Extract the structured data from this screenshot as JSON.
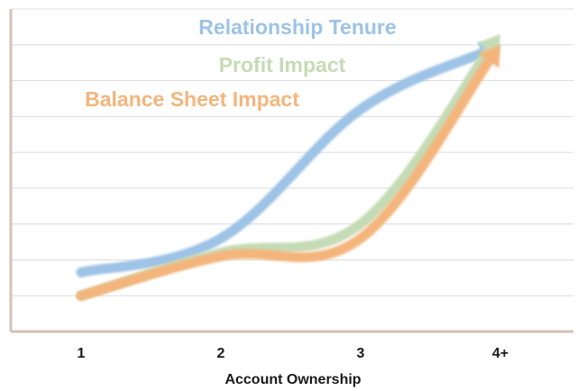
{
  "chart_data": {
    "type": "line",
    "title": "",
    "xlabel": "Account Ownership",
    "ylabel": "",
    "categories": [
      "1",
      "2",
      "3",
      "4+"
    ],
    "ylim": [
      0,
      9
    ],
    "grid": true,
    "legend_placement": "top-center",
    "series": [
      {
        "name": "Relationship Tenure",
        "color": "#9dc3e6",
        "values": [
          1.65,
          2.6,
          6.2,
          8.0
        ]
      },
      {
        "name": "Profit Impact",
        "color": "#c5dbb5",
        "values": [
          1.0,
          2.2,
          3.0,
          8.3
        ]
      },
      {
        "name": "Balance Sheet Impact",
        "color": "#f4b57d",
        "values": [
          1.0,
          2.1,
          2.6,
          8.0
        ]
      }
    ]
  },
  "colors": {
    "axis": "#d4c2b8",
    "grid": "#dcdcdc"
  }
}
